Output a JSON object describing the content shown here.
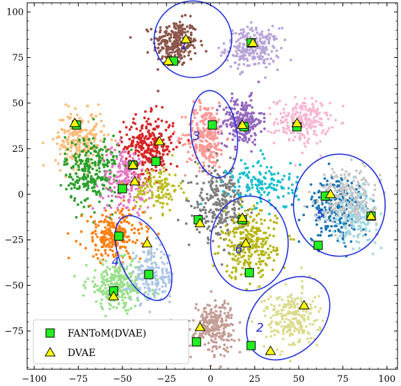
{
  "chart_data": {
    "type": "scatter",
    "title": "",
    "xlabel": "",
    "ylabel": "",
    "xlim": [
      -104,
      106
    ],
    "ylim": [
      -96,
      105
    ],
    "xticks": [
      -100,
      -75,
      -50,
      -25,
      0,
      25,
      50,
      75,
      100
    ],
    "yticks": [
      -75,
      -50,
      -25,
      0,
      25,
      50,
      75,
      100
    ],
    "xtick_labels": [
      "−100",
      "−75",
      "−50",
      "−25",
      "0",
      "25",
      "50",
      "75",
      "100"
    ],
    "ytick_labels": [
      "−75",
      "−50",
      "−25",
      "0",
      "25",
      "50",
      "75",
      "100"
    ],
    "grid": false,
    "legend_position": "lower-left",
    "clusters": [
      {
        "color": "#8c564b",
        "center": [
          -20,
          83
        ],
        "spread": [
          9,
          9
        ],
        "n": 260
      },
      {
        "color": "#b9a4d8",
        "center": [
          24,
          80
        ],
        "spread": [
          11,
          8
        ],
        "n": 240
      },
      {
        "color": "#f7b6d2",
        "center": [
          52,
          40
        ],
        "spread": [
          11,
          9
        ],
        "n": 220
      },
      {
        "color": "#9467bd",
        "center": [
          18,
          40
        ],
        "spread": [
          8,
          9
        ],
        "n": 220
      },
      {
        "color": "#ff9896",
        "center": [
          -3,
          32
        ],
        "spread": [
          8,
          13
        ],
        "n": 260
      },
      {
        "color": "#d62728",
        "center": [
          -35,
          26
        ],
        "spread": [
          10,
          12
        ],
        "n": 300
      },
      {
        "color": "#ffbb78",
        "center": [
          -74,
          30
        ],
        "spread": [
          10,
          11
        ],
        "n": 230
      },
      {
        "color": "#2ca02c",
        "center": [
          -67,
          13
        ],
        "spread": [
          11,
          14
        ],
        "n": 280
      },
      {
        "color": "#e377c2",
        "center": [
          -48,
          8
        ],
        "spread": [
          10,
          13
        ],
        "n": 200
      },
      {
        "color": "#bcbd22",
        "center": [
          -30,
          3
        ],
        "spread": [
          9,
          9
        ],
        "n": 120
      },
      {
        "color": "#ff7f0e",
        "center": [
          -55,
          -23
        ],
        "spread": [
          12,
          10
        ],
        "n": 240
      },
      {
        "color": "#98df8a",
        "center": [
          -52,
          -50
        ],
        "spread": [
          13,
          9
        ],
        "n": 280
      },
      {
        "color": "#aec7e8",
        "center": [
          -33,
          -45
        ],
        "spread": [
          9,
          10
        ],
        "n": 180
      },
      {
        "color": "#7f7f7f",
        "center": [
          5,
          -5
        ],
        "spread": [
          10,
          14
        ],
        "n": 260
      },
      {
        "color": "#c49c94",
        "center": [
          2,
          -72
        ],
        "spread": [
          8,
          10
        ],
        "n": 230
      },
      {
        "color": "#17becf",
        "center": [
          30,
          5
        ],
        "spread": [
          14,
          10
        ],
        "n": 150
      },
      {
        "color": "#b5b512",
        "center": [
          22,
          -28
        ],
        "spread": [
          11,
          13
        ],
        "n": 280
      },
      {
        "color": "#1f77b4",
        "center": [
          72,
          -8
        ],
        "spread": [
          12,
          13
        ],
        "n": 250
      },
      {
        "color": "#9edae5",
        "center": [
          82,
          -12
        ],
        "spread": [
          9,
          10
        ],
        "n": 150
      },
      {
        "color": "#c7c7c7",
        "center": [
          78,
          -1
        ],
        "spread": [
          12,
          11
        ],
        "n": 220
      },
      {
        "color": "#dbdb8d",
        "center": [
          46,
          -68
        ],
        "spread": [
          11,
          12
        ],
        "n": 230
      }
    ],
    "ellipses": [
      {
        "label": "1",
        "cx": -10,
        "cy": 85,
        "rx": 22,
        "ry": 21,
        "angle": 0,
        "label_at": [
          -15,
          82
        ]
      },
      {
        "label": "2",
        "cx": 44,
        "cy": -68,
        "rx": 27,
        "ry": 19,
        "angle": 45,
        "label_at": [
          28,
          -73
        ]
      },
      {
        "label": "3",
        "cx": 2,
        "cy": 33,
        "rx": 13,
        "ry": 24,
        "angle": 8,
        "label_at": [
          -8,
          32
        ]
      },
      {
        "label": "4",
        "cx": -38,
        "cy": -35,
        "rx": 13,
        "ry": 25,
        "angle": 25,
        "label_at": [
          -54,
          -37
        ]
      },
      {
        "label": "5",
        "cx": 73,
        "cy": -6,
        "rx": 26,
        "ry": 28,
        "angle": 0,
        "label_at": [
          62,
          -11
        ]
      },
      {
        "label": "6",
        "cx": 22,
        "cy": -27,
        "rx": 22,
        "ry": 26,
        "angle": 0,
        "label_at": [
          16,
          -30
        ]
      }
    ],
    "series": [
      {
        "name": "FANToM(DVAE)",
        "marker": "square",
        "color": "#22ee22",
        "points": [
          [
            -21,
            73
          ],
          [
            23,
            83
          ],
          [
            1,
            38
          ],
          [
            19,
            37
          ],
          [
            49,
            37
          ],
          [
            -76,
            38
          ],
          [
            -31,
            18
          ],
          [
            -44,
            16
          ],
          [
            -50,
            3
          ],
          [
            -7,
            -14
          ],
          [
            18,
            -14
          ],
          [
            65,
            -1
          ],
          [
            91,
            -12
          ],
          [
            -52,
            -23
          ],
          [
            61,
            -28
          ],
          [
            -35,
            -44
          ],
          [
            22,
            -43
          ],
          [
            -55,
            -53
          ],
          [
            -8,
            -81
          ],
          [
            23,
            -83
          ]
        ]
      },
      {
        "name": "DVAE",
        "marker": "triangle",
        "color": "#ffff00",
        "points": [
          [
            -14,
            85
          ],
          [
            -24,
            73
          ],
          [
            24,
            83
          ],
          [
            -77,
            39
          ],
          [
            18,
            38
          ],
          [
            49,
            39
          ],
          [
            -29,
            29
          ],
          [
            -44,
            16
          ],
          [
            -43,
            7
          ],
          [
            -6,
            -16
          ],
          [
            18,
            -13
          ],
          [
            20,
            -27
          ],
          [
            68,
            0
          ],
          [
            91,
            -12
          ],
          [
            -36,
            -27
          ],
          [
            -55,
            -56
          ],
          [
            53,
            -61
          ],
          [
            -6,
            -73
          ],
          [
            34,
            -86
          ]
        ]
      }
    ]
  }
}
